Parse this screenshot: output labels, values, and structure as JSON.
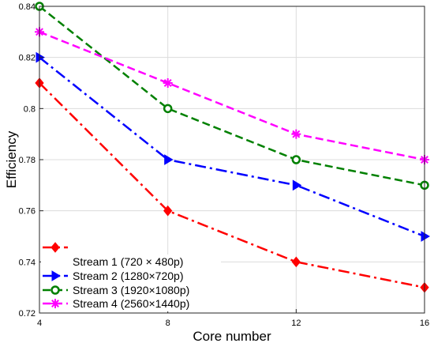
{
  "chart_data": {
    "type": "line",
    "title": "",
    "xlabel": "Core number",
    "ylabel": "Efficiency",
    "x": [
      4,
      8,
      12,
      16
    ],
    "xlim": [
      4,
      16
    ],
    "ylim": [
      0.72,
      0.84
    ],
    "xticks": [
      "4",
      "8",
      "12",
      "16"
    ],
    "yticks": [
      "0.72",
      "0.74",
      "0.76",
      "0.78",
      "0.8",
      "0.82",
      "0.84"
    ],
    "grid": true,
    "legend_position": "bottom-left",
    "series": [
      {
        "name": "Stream 1 (720 × 480p)",
        "values": [
          0.81,
          0.76,
          0.74,
          0.73
        ],
        "color": "#ff0000",
        "dash": "dash-dot",
        "marker": "diamond"
      },
      {
        "name": "Stream 2 (1280×720p)",
        "values": [
          0.82,
          0.78,
          0.77,
          0.75
        ],
        "color": "#0000ff",
        "dash": "dash-dot",
        "marker": "triangle-right"
      },
      {
        "name": "Stream 3 (1920×1080p)",
        "values": [
          0.84,
          0.8,
          0.78,
          0.77
        ],
        "color": "#008000",
        "dash": "dashed",
        "marker": "circle"
      },
      {
        "name": "Stream 4 (2560×1440p)",
        "values": [
          0.83,
          0.81,
          0.79,
          0.78
        ],
        "color": "#ff00ff",
        "dash": "dashed",
        "marker": "asterisk"
      }
    ]
  }
}
